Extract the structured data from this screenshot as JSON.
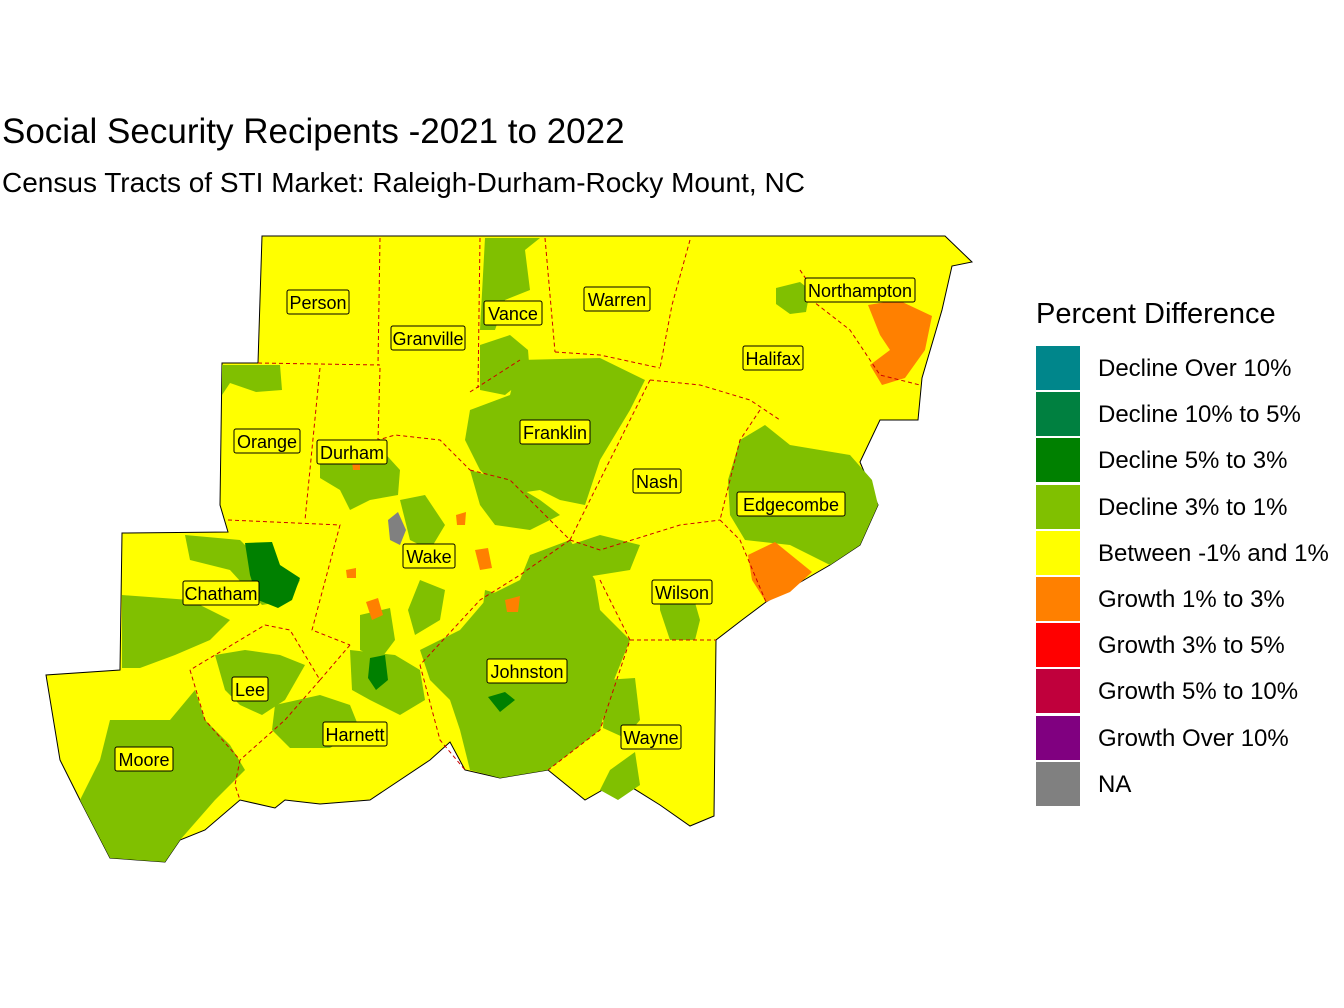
{
  "title": "Social Security Recipents -2021 to 2022",
  "subtitle": "Census Tracts of STI Market: Raleigh-Durham-Rocky Mount, NC",
  "legend": {
    "title": "Percent Difference",
    "items": [
      {
        "label": "Decline Over 10%",
        "color": "#00868b"
      },
      {
        "label": "Decline 10% to 5%",
        "color": "#008040"
      },
      {
        "label": "Decline 5% to 3%",
        "color": "#008000"
      },
      {
        "label": "Decline 3% to 1%",
        "color": "#80c000"
      },
      {
        "label": "Between -1% and 1%",
        "color": "#ffff00"
      },
      {
        "label": "Growth 1% to 3%",
        "color": "#ff8000"
      },
      {
        "label": "Growth 3% to 5%",
        "color": "#ff0000"
      },
      {
        "label": "Growth 5% to 10%",
        "color": "#c0003c"
      },
      {
        "label": "Growth Over 10%",
        "color": "#800080"
      },
      {
        "label": "NA",
        "color": "#808080"
      }
    ]
  },
  "counties": [
    {
      "name": "Person"
    },
    {
      "name": "Granville"
    },
    {
      "name": "Vance"
    },
    {
      "name": "Warren"
    },
    {
      "name": "Northampton"
    },
    {
      "name": "Halifax"
    },
    {
      "name": "Orange"
    },
    {
      "name": "Durham"
    },
    {
      "name": "Franklin"
    },
    {
      "name": "Nash"
    },
    {
      "name": "Edgecombe"
    },
    {
      "name": "Wake"
    },
    {
      "name": "Chatham"
    },
    {
      "name": "Wilson"
    },
    {
      "name": "Johnston"
    },
    {
      "name": "Lee"
    },
    {
      "name": "Harnett"
    },
    {
      "name": "Wayne"
    },
    {
      "name": "Moore"
    }
  ]
}
